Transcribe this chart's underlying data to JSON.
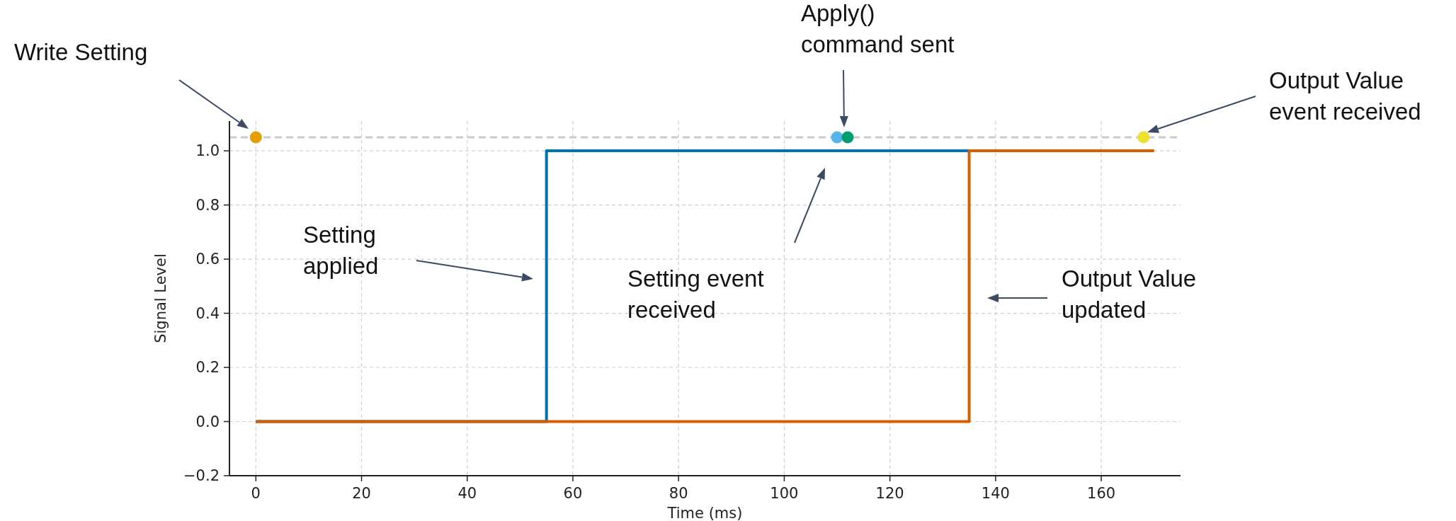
{
  "chart_data": {
    "type": "step",
    "xlabel": "Time (ms)",
    "ylabel": "Signal Level",
    "xlim": [
      -5,
      175
    ],
    "xticks": [
      0,
      20,
      40,
      60,
      80,
      100,
      120,
      140,
      160
    ],
    "ylim": [
      -0.2,
      1.11
    ],
    "yticks": [
      {
        "value": -0.2,
        "label": "−0.2"
      },
      {
        "value": 0,
        "label": "0.0"
      },
      {
        "value": 0.2,
        "label": "0.2"
      },
      {
        "value": 0.4,
        "label": "0.4"
      },
      {
        "value": 0.6,
        "label": "0.6"
      },
      {
        "value": 0.8,
        "label": "0.8"
      },
      {
        "value": 1,
        "label": "1.0"
      }
    ],
    "grid": true,
    "line_style": "solid",
    "series": [
      {
        "color": "#0173b2",
        "x": [
          0,
          55,
          135
        ],
        "values": [
          0,
          1,
          1
        ]
      },
      {
        "color": "#d55e00",
        "x": [
          0,
          135,
          170
        ],
        "values": [
          0,
          1,
          1
        ]
      },
      {
        "type": "scatter",
        "color": "#e69f00",
        "x": [
          0
        ],
        "values": [
          1.05
        ],
        "marker": "circle"
      },
      {
        "type": "scatter",
        "color": "#56b4e9",
        "x": [
          110
        ],
        "values": [
          1.05
        ],
        "marker": "circle"
      },
      {
        "type": "scatter",
        "color": "#029e73",
        "x": [
          112
        ],
        "values": [
          1.05
        ],
        "marker": "circle"
      },
      {
        "type": "scatter",
        "color": "#ece133",
        "x": [
          168
        ],
        "values": [
          1.05
        ],
        "marker": "circle"
      }
    ],
    "ref_lines": [
      {
        "axis": "y",
        "value": 1.05,
        "color": "#cccccc",
        "line_style": "dashed"
      }
    ],
    "annotations": [
      "Write Setting",
      "Apply()\ncommand sent",
      "Output Value\nevent received",
      "Setting\napplied",
      "Setting event\nreceived",
      "Output Value\nupdated"
    ]
  }
}
